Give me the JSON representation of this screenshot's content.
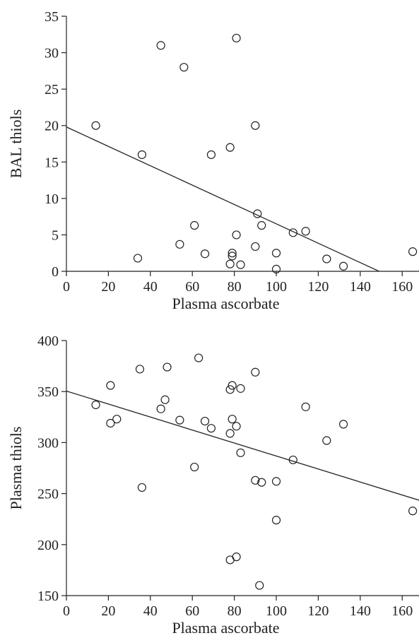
{
  "chart_data": [
    {
      "type": "scatter",
      "title": "",
      "xlabel": "Plasma ascorbate",
      "ylabel": "BAL thiols",
      "xlim": [
        0,
        168
      ],
      "ylim": [
        0,
        35
      ],
      "xticks": [
        0,
        20,
        40,
        60,
        80,
        100,
        120,
        140,
        160
      ],
      "yticks": [
        0,
        5,
        10,
        15,
        20,
        25,
        30,
        35
      ],
      "grid": false,
      "marker": "open-circle",
      "points": [
        {
          "x": 14,
          "y": 20
        },
        {
          "x": 34,
          "y": 1.8
        },
        {
          "x": 36,
          "y": 16
        },
        {
          "x": 45,
          "y": 31
        },
        {
          "x": 54,
          "y": 3.7
        },
        {
          "x": 56,
          "y": 28
        },
        {
          "x": 61,
          "y": 6.3
        },
        {
          "x": 66,
          "y": 2.4
        },
        {
          "x": 69,
          "y": 16
        },
        {
          "x": 78,
          "y": 17
        },
        {
          "x": 78,
          "y": 1.0
        },
        {
          "x": 79,
          "y": 2.1
        },
        {
          "x": 79,
          "y": 2.5
        },
        {
          "x": 81,
          "y": 32
        },
        {
          "x": 81,
          "y": 5.0
        },
        {
          "x": 83,
          "y": 0.9
        },
        {
          "x": 90,
          "y": 20
        },
        {
          "x": 90,
          "y": 3.4
        },
        {
          "x": 91,
          "y": 7.9
        },
        {
          "x": 93,
          "y": 6.3
        },
        {
          "x": 100,
          "y": 2.5
        },
        {
          "x": 100,
          "y": 0.3
        },
        {
          "x": 108,
          "y": 5.3
        },
        {
          "x": 114,
          "y": 5.5
        },
        {
          "x": 124,
          "y": 1.7
        },
        {
          "x": 132,
          "y": 0.7
        },
        {
          "x": 165,
          "y": 2.7
        }
      ],
      "fit_line": {
        "x": [
          0,
          149
        ],
        "y": [
          19.8,
          0
        ]
      }
    },
    {
      "type": "scatter",
      "title": "",
      "xlabel": "Plasma ascorbate",
      "ylabel": "Plasma thiols",
      "xlim": [
        0,
        168
      ],
      "ylim": [
        150,
        400
      ],
      "xticks": [
        0,
        20,
        40,
        60,
        80,
        100,
        120,
        140,
        160
      ],
      "yticks": [
        150,
        200,
        250,
        300,
        350,
        400
      ],
      "grid": false,
      "marker": "open-circle",
      "points": [
        {
          "x": 14,
          "y": 337
        },
        {
          "x": 21,
          "y": 356
        },
        {
          "x": 21,
          "y": 319
        },
        {
          "x": 24,
          "y": 323
        },
        {
          "x": 35,
          "y": 372
        },
        {
          "x": 36,
          "y": 256
        },
        {
          "x": 45,
          "y": 333
        },
        {
          "x": 47,
          "y": 342
        },
        {
          "x": 48,
          "y": 374
        },
        {
          "x": 54,
          "y": 322
        },
        {
          "x": 61,
          "y": 276
        },
        {
          "x": 63,
          "y": 383
        },
        {
          "x": 66,
          "y": 321
        },
        {
          "x": 69,
          "y": 314
        },
        {
          "x": 78,
          "y": 352
        },
        {
          "x": 78,
          "y": 309
        },
        {
          "x": 78,
          "y": 185
        },
        {
          "x": 79,
          "y": 356
        },
        {
          "x": 79,
          "y": 323
        },
        {
          "x": 81,
          "y": 316
        },
        {
          "x": 81,
          "y": 188
        },
        {
          "x": 83,
          "y": 353
        },
        {
          "x": 83,
          "y": 290
        },
        {
          "x": 90,
          "y": 369
        },
        {
          "x": 90,
          "y": 263
        },
        {
          "x": 92,
          "y": 160
        },
        {
          "x": 93,
          "y": 261
        },
        {
          "x": 100,
          "y": 262
        },
        {
          "x": 100,
          "y": 224
        },
        {
          "x": 108,
          "y": 283
        },
        {
          "x": 114,
          "y": 335
        },
        {
          "x": 124,
          "y": 302
        },
        {
          "x": 132,
          "y": 318
        },
        {
          "x": 165,
          "y": 233
        }
      ],
      "fit_line": {
        "x": [
          0,
          168
        ],
        "y": [
          350.5,
          243.5
        ]
      }
    }
  ]
}
